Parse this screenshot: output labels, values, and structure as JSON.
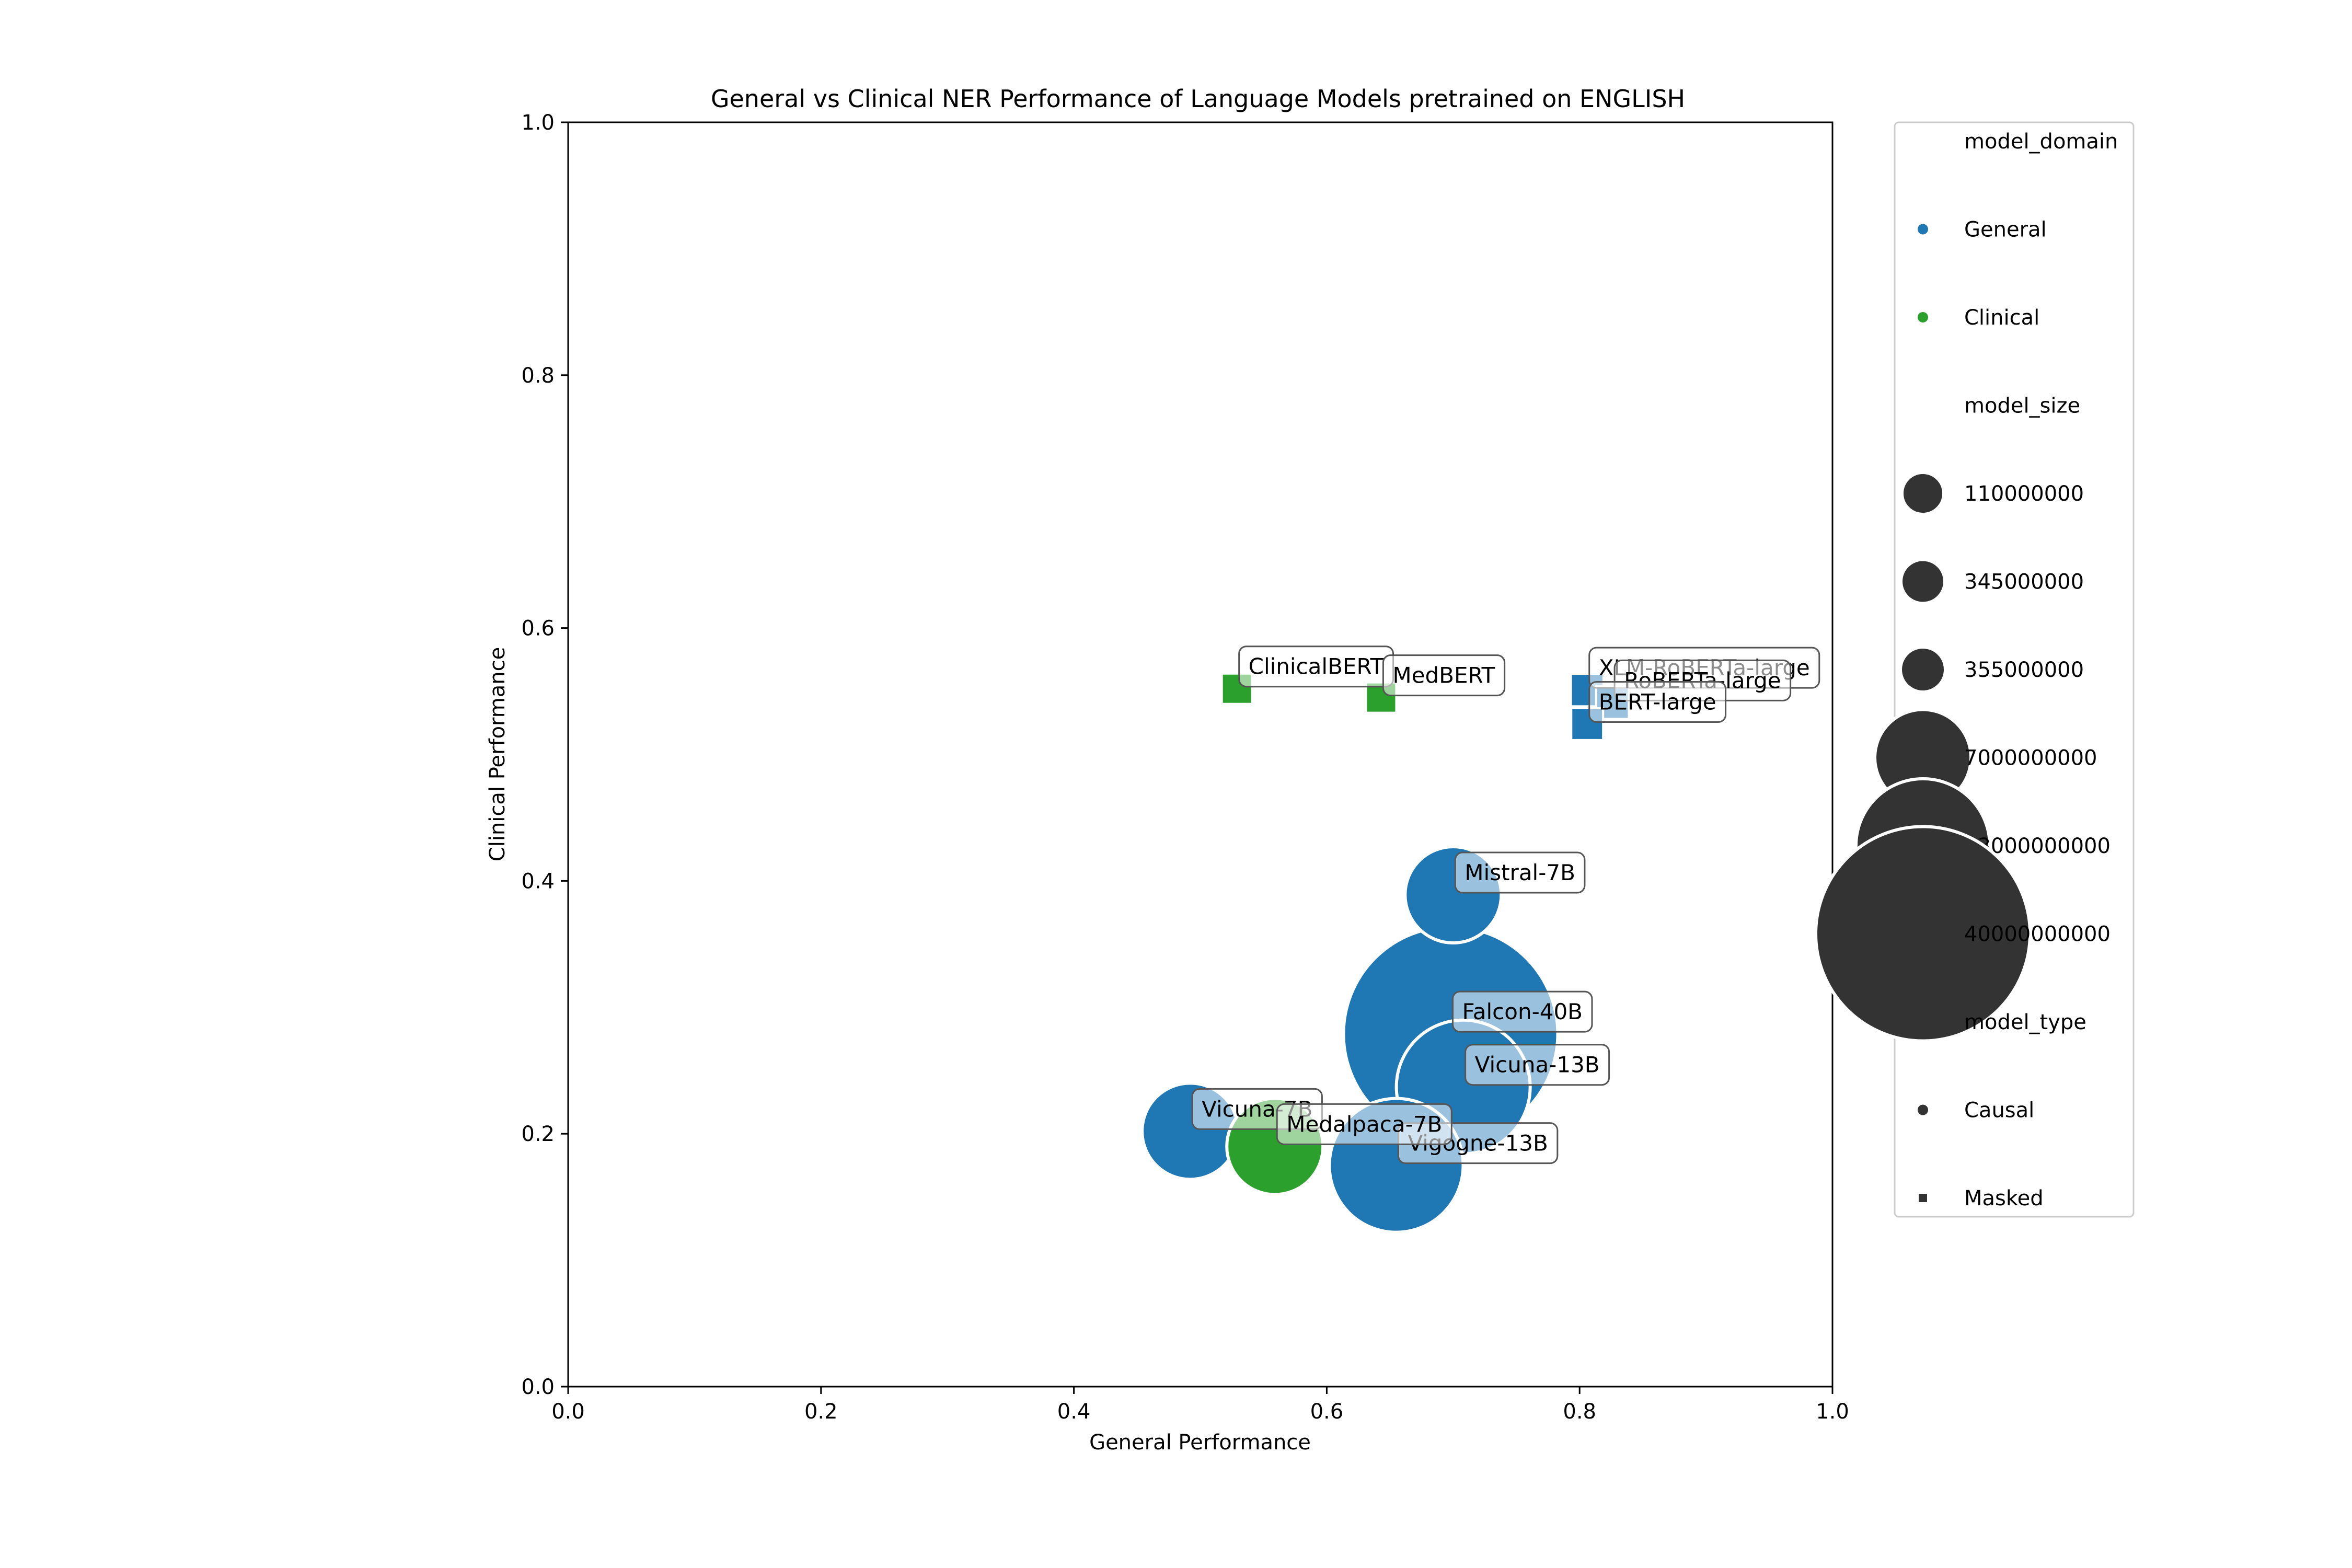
{
  "chart_data": {
    "type": "scatter",
    "title": "General vs Clinical NER Performance of Language Models pretrained on ENGLISH",
    "xlabel": "General Performance",
    "ylabel": "Clinical Performance",
    "xlim": [
      0.0,
      1.0
    ],
    "ylim": [
      0.0,
      1.0
    ],
    "xticks": [
      "0.0",
      "0.2",
      "0.4",
      "0.6",
      "0.8",
      "1.0"
    ],
    "yticks": [
      "0.0",
      "0.2",
      "0.4",
      "0.6",
      "0.8",
      "1.0"
    ],
    "grid": false,
    "legend_position": "outside right",
    "colors": {
      "General": "#1f77b4",
      "Clinical": "#2ca02c",
      "legend_marker": "#333333"
    },
    "points": [
      {
        "label": "Falcon-40B",
        "x": 0.698,
        "y": 0.279,
        "domain": "General",
        "type": "Causal",
        "size": 40000000000
      },
      {
        "label": "Vicuna-13B",
        "x": 0.708,
        "y": 0.237,
        "domain": "General",
        "type": "Causal",
        "size": 13000000000
      },
      {
        "label": "Vigogne-13B",
        "x": 0.655,
        "y": 0.175,
        "domain": "General",
        "type": "Causal",
        "size": 13000000000
      },
      {
        "label": "Mistral-7B",
        "x": 0.7,
        "y": 0.389,
        "domain": "General",
        "type": "Causal",
        "size": 7000000000
      },
      {
        "label": "Vicuna-7B",
        "x": 0.492,
        "y": 0.202,
        "domain": "General",
        "type": "Causal",
        "size": 7000000000
      },
      {
        "label": "Medalpaca-7B",
        "x": 0.559,
        "y": 0.19,
        "domain": "Clinical",
        "type": "Causal",
        "size": 7000000000
      },
      {
        "label": "ClinicalBERT",
        "x": 0.529,
        "y": 0.552,
        "domain": "Clinical",
        "type": "Masked",
        "size": 110000000
      },
      {
        "label": "MedBERT",
        "x": 0.643,
        "y": 0.545,
        "domain": "Clinical",
        "type": "Masked",
        "size": 110000000
      },
      {
        "label": "XLM-RoBERTa-large",
        "x": 0.806,
        "y": 0.551,
        "domain": "General",
        "type": "Masked",
        "size": 355000000
      },
      {
        "label": "RoBERTa-large",
        "x": 0.826,
        "y": 0.541,
        "domain": "General",
        "type": "Masked",
        "size": 355000000
      },
      {
        "label": "BERT-large",
        "x": 0.806,
        "y": 0.524,
        "domain": "General",
        "type": "Masked",
        "size": 345000000
      }
    ],
    "legend": {
      "domain_title": "model_domain",
      "domain_entries": [
        "General",
        "Clinical"
      ],
      "size_title": "model_size",
      "size_entries": [
        "110000000",
        "345000000",
        "355000000",
        "7000000000",
        "13000000000",
        "40000000000"
      ],
      "type_title": "model_type",
      "type_entries": [
        "Causal",
        "Masked"
      ]
    }
  }
}
